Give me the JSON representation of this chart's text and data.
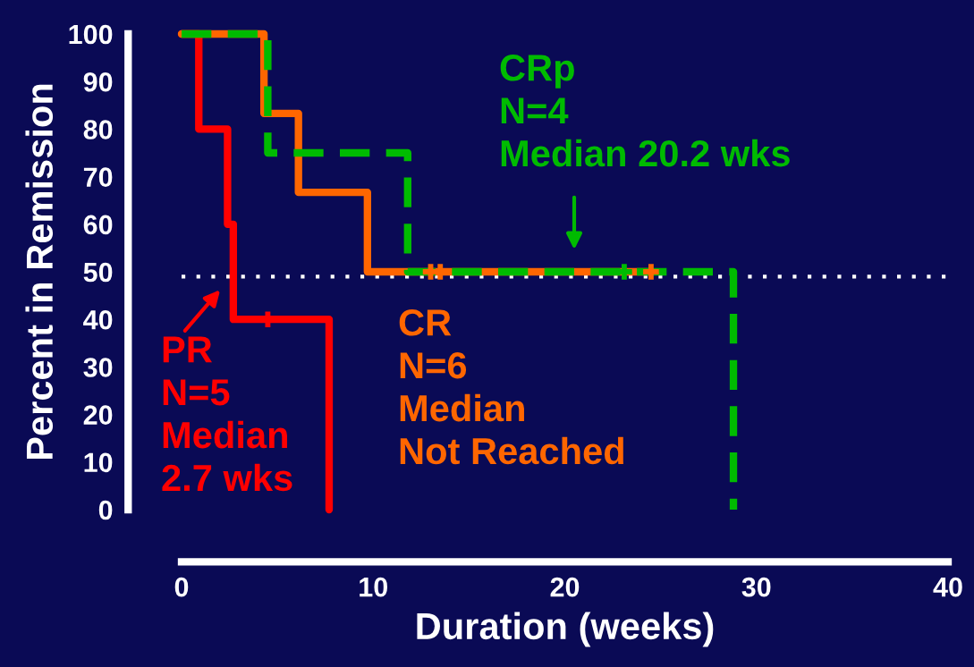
{
  "chart_data": {
    "type": "step",
    "xlabel": "Duration (weeks)",
    "ylabel": "Percent in Remission",
    "xlim": [
      0,
      40
    ],
    "xticks": [
      0,
      10,
      20,
      30,
      40
    ],
    "ylim": [
      0,
      100
    ],
    "yticks": [
      0,
      10,
      20,
      30,
      40,
      50,
      60,
      70,
      80,
      90,
      100
    ],
    "grid": false,
    "legend": false,
    "series": [
      {
        "color": "#ff0000",
        "line_style": "solid",
        "x": [
          0,
          0.9,
          2.4,
          2.7,
          7.7
        ],
        "values": [
          100,
          80,
          60,
          40,
          0
        ]
      },
      {
        "color": "#ff6600",
        "line_style": "solid",
        "x": [
          0,
          4.3,
          6.1,
          9.7,
          24.5
        ],
        "values": [
          100,
          83.3,
          66.7,
          50,
          50
        ]
      },
      {
        "color": "#00bb00",
        "line_style": "dashed",
        "x": [
          0,
          4.5,
          11.8,
          28.8
        ],
        "values": [
          100,
          75,
          50,
          0
        ]
      },
      {
        "type": "scatter",
        "color": "#ff0000",
        "marker": "cross",
        "x": [
          4.5
        ],
        "values": [
          40
        ]
      },
      {
        "type": "scatter",
        "color": "#ff6600",
        "marker": "cross",
        "x": [
          13.0,
          13.5,
          24.5
        ],
        "values": [
          50,
          50,
          50
        ]
      },
      {
        "type": "scatter",
        "color": "#00bb00",
        "marker": "cross",
        "x": [
          23.1
        ],
        "values": [
          50
        ]
      }
    ],
    "ref_lines": [
      {
        "axis": "y",
        "value": 49,
        "color": "#ffffff",
        "line_style": "dotted"
      }
    ],
    "annotations": [
      "PR\nN=5\nMedian\n2.7 wks",
      "CR\nN=6\nMedian\nNot Reached",
      "CRp\nN=4\nMedian 20.2 wks"
    ]
  }
}
